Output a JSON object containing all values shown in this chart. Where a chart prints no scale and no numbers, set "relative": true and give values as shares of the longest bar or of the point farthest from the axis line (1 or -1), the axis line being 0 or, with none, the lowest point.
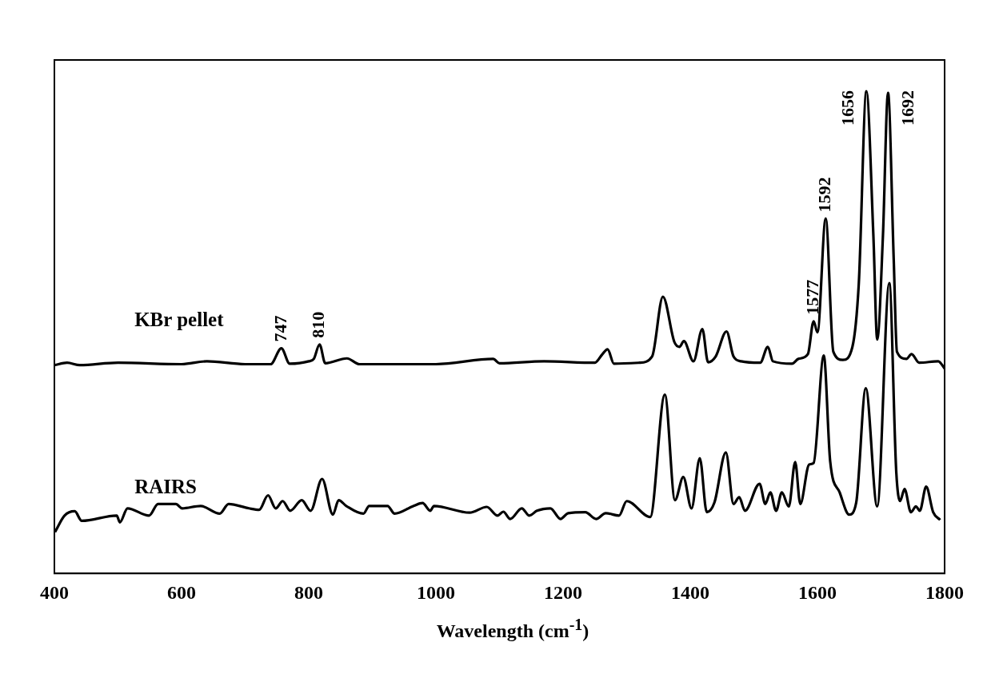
{
  "chart_data": {
    "type": "line",
    "relative": true,
    "xlabel": "Wavelength (cm$^{-1}$)",
    "xlim": [
      400,
      1800
    ],
    "xticks": [
      400,
      600,
      800,
      1000,
      1200,
      1400,
      1600,
      1800
    ],
    "grid": false,
    "legend": false,
    "series": [
      {
        "name": "KBr pellet",
        "color": "#000000",
        "x": [
          400,
          420,
          440,
          500,
          600,
          640,
          700,
          740,
          757,
          770,
          800,
          808,
          817,
          826,
          860,
          880,
          1000,
          1090,
          1100,
          1170,
          1250,
          1262,
          1270,
          1280,
          1320,
          1340,
          1357,
          1375,
          1383,
          1390,
          1405,
          1419,
          1428,
          1440,
          1457,
          1468,
          1480,
          1510,
          1522,
          1530,
          1560,
          1570,
          1585,
          1594,
          1600,
          1613,
          1625,
          1640,
          1655,
          1665,
          1677,
          1688,
          1694,
          1703,
          1711,
          1720,
          1725,
          1740,
          1748,
          1760,
          1790,
          1800
        ],
        "values": [
          0.432,
          0.437,
          0.432,
          0.437,
          0.434,
          0.44,
          0.434,
          0.434,
          0.467,
          0.435,
          0.44,
          0.445,
          0.475,
          0.436,
          0.446,
          0.434,
          0.434,
          0.445,
          0.436,
          0.44,
          0.437,
          0.455,
          0.465,
          0.435,
          0.437,
          0.45,
          0.574,
          0.48,
          0.47,
          0.482,
          0.44,
          0.507,
          0.438,
          0.45,
          0.502,
          0.45,
          0.44,
          0.437,
          0.47,
          0.44,
          0.435,
          0.445,
          0.455,
          0.523,
          0.5,
          0.736,
          0.46,
          0.443,
          0.47,
          0.6,
          1,
          0.7,
          0.485,
          0.7,
          0.997,
          0.65,
          0.46,
          0.445,
          0.455,
          0.437,
          0.44,
          0.425
        ]
      },
      {
        "name": "RAIRS",
        "color": "#000000",
        "x": [
          401,
          416,
          432,
          443,
          498,
          503,
          515,
          549,
          563,
          591,
          601,
          630,
          660,
          674,
          706,
          722,
          736,
          748,
          759,
          771,
          789,
          803,
          821,
          838,
          847,
          859,
          886,
          895,
          924,
          935,
          965,
          979,
          991,
          997,
          1053,
          1080,
          1097,
          1106,
          1117,
          1135,
          1147,
          1159,
          1180,
          1196,
          1208,
          1235,
          1252,
          1267,
          1288,
          1300,
          1337,
          1360,
          1376,
          1389,
          1402,
          1415,
          1426,
          1438,
          1456,
          1468,
          1477,
          1486,
          1509,
          1518,
          1526,
          1535,
          1544,
          1555,
          1565,
          1573,
          1587,
          1594,
          1610,
          1620,
          1635,
          1650,
          1661,
          1676,
          1694,
          1713,
          1724,
          1730,
          1737,
          1747,
          1755,
          1761,
          1771,
          1782,
          1793
        ],
        "values": [
          0.086,
          0.12,
          0.129,
          0.109,
          0.12,
          0.106,
          0.135,
          0.12,
          0.144,
          0.144,
          0.135,
          0.14,
          0.124,
          0.144,
          0.135,
          0.132,
          0.162,
          0.135,
          0.15,
          0.13,
          0.152,
          0.13,
          0.196,
          0.122,
          0.152,
          0.14,
          0.124,
          0.14,
          0.14,
          0.124,
          0.14,
          0.146,
          0.13,
          0.14,
          0.126,
          0.138,
          0.12,
          0.128,
          0.113,
          0.135,
          0.12,
          0.13,
          0.135,
          0.113,
          0.125,
          0.127,
          0.113,
          0.125,
          0.12,
          0.15,
          0.117,
          0.371,
          0.152,
          0.2,
          0.135,
          0.239,
          0.127,
          0.147,
          0.251,
          0.144,
          0.158,
          0.13,
          0.186,
          0.144,
          0.168,
          0.13,
          0.168,
          0.139,
          0.231,
          0.144,
          0.226,
          0.229,
          0.452,
          0.233,
          0.168,
          0.122,
          0.147,
          0.384,
          0.139,
          0.602,
          0.21,
          0.15,
          0.175,
          0.127,
          0.139,
          0.13,
          0.18,
          0.127,
          0.111
        ]
      }
    ],
    "annotations": [
      {
        "text": "747",
        "x": 757,
        "y": 0.467
      },
      {
        "text": "810",
        "x": 817,
        "y": 0.475
      },
      {
        "text": "1577",
        "x": 1594,
        "y": 0.523
      },
      {
        "text": "1592",
        "x": 1613,
        "y": 0.736
      },
      {
        "text": "1656",
        "x": 1677,
        "y": 1
      },
      {
        "text": "1692",
        "x": 1711,
        "y": 0.997
      }
    ]
  }
}
